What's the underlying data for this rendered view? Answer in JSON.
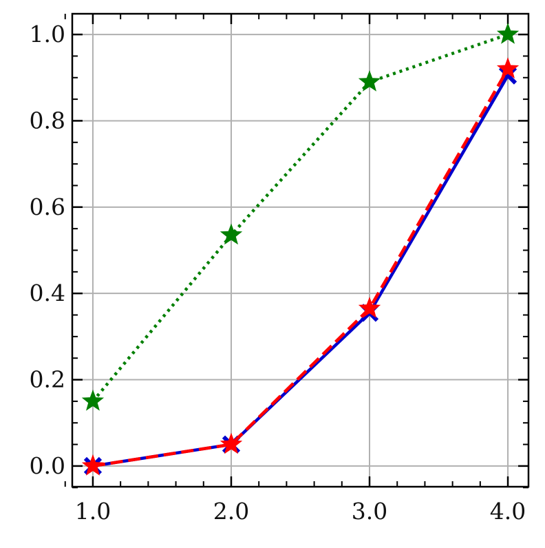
{
  "chart_data": {
    "type": "line",
    "x": [
      1,
      2,
      3,
      4
    ],
    "series": [
      {
        "name": "green",
        "color": "#007f00",
        "values": [
          0.15,
          0.535,
          0.89,
          1.0
        ],
        "linestyle": "dotted",
        "marker": "star"
      },
      {
        "name": "blue",
        "color": "#0000cc",
        "values": [
          0.0,
          0.05,
          0.355,
          0.905
        ],
        "linestyle": "solid",
        "marker": "x"
      },
      {
        "name": "red",
        "color": "#ff0000",
        "values": [
          0.0,
          0.05,
          0.365,
          0.92
        ],
        "linestyle": "dashed",
        "marker": "star"
      }
    ],
    "xlim": [
      0.851,
      4.149
    ],
    "ylim": [
      -0.048,
      1.048
    ],
    "xticks": [
      {
        "value": 1,
        "label": "1.0"
      },
      {
        "value": 2,
        "label": "2.0"
      },
      {
        "value": 3,
        "label": "3.0"
      },
      {
        "value": 4,
        "label": "4.0"
      }
    ],
    "yticks": [
      {
        "value": 0,
        "label": "0.0"
      },
      0.2,
      0.4,
      0.6,
      0.8,
      {
        "value": 1,
        "label": "1.0"
      }
    ],
    "grid": true,
    "legend": false
  }
}
